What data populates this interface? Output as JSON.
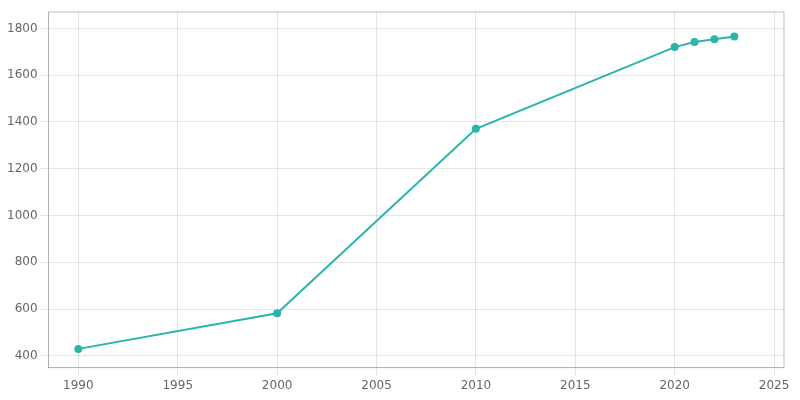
{
  "chart_data": {
    "type": "line",
    "x": [
      1990,
      2000,
      2010,
      2020,
      2021,
      2022,
      2023
    ],
    "values": [
      430,
      582,
      1371,
      1720,
      1742,
      1754,
      1765
    ],
    "color": "#2ab5ac",
    "marker": "circle",
    "xlim": [
      1988.5,
      2025.5
    ],
    "xticks": [
      1990,
      1995,
      2000,
      2005,
      2010,
      2015,
      2020,
      2025
    ],
    "ylim": [
      350,
      1870
    ],
    "yticks": [
      400,
      600,
      800,
      1000,
      1200,
      1400,
      1600,
      1800
    ],
    "grid": true
  }
}
